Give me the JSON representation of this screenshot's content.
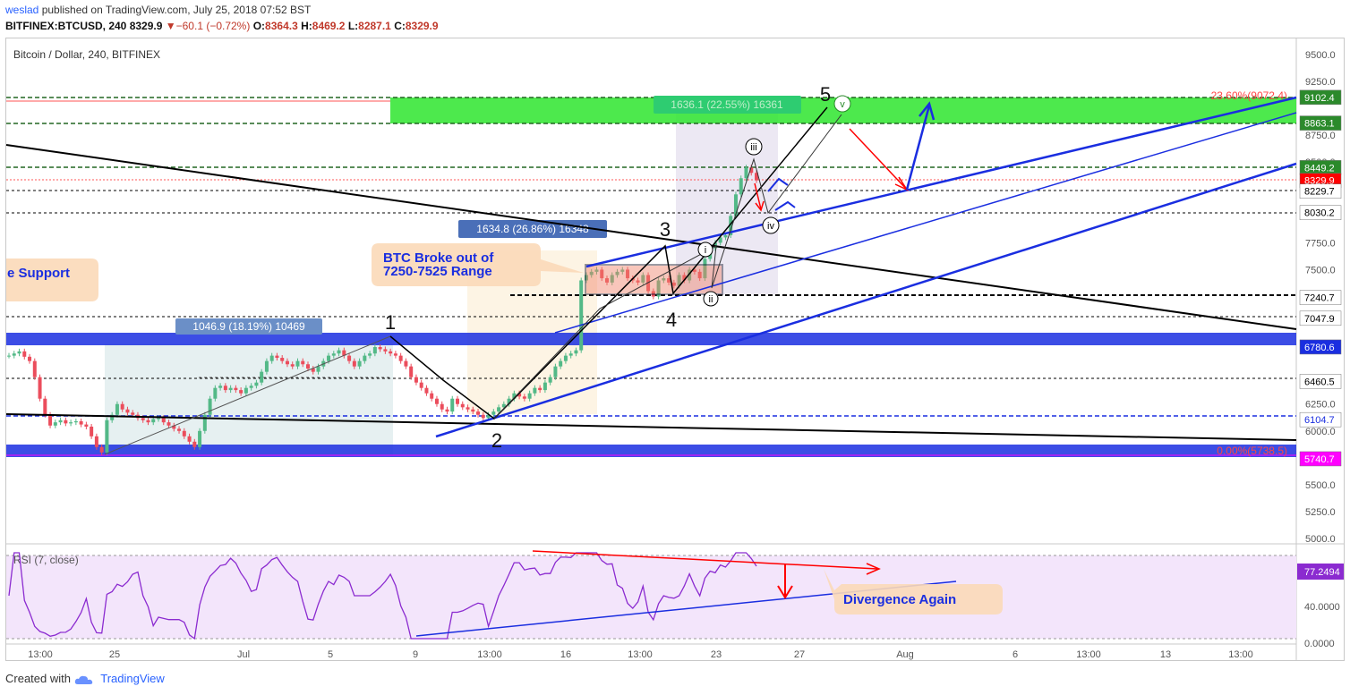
{
  "header": {
    "author": "weslad",
    "published_text": "published on TradingView.com, July 25, 2018 07:52 BST",
    "symbol": "BITFINEX:BTCUSD, 240",
    "last": "8329.9",
    "change": "▼−60.1 (−0.72%)",
    "o_label": "O:",
    "o_value": "8364.3",
    "h_label": "H:",
    "h_value": "8469.2",
    "l_label": "L:",
    "l_value": "8287.1",
    "c_label": "C:",
    "c_value": "8329.9"
  },
  "legend": {
    "title": "Bitcoin / Dollar, 240, BITFINEX"
  },
  "footer": {
    "created_with": "Created with",
    "brand": "TradingView"
  },
  "colors": {
    "up": "#53b987",
    "down": "#eb4d5c",
    "blue_line": "#1a2ee0",
    "green_zone": "#2ee52e",
    "rsi_bg": "#f3e5fb",
    "red_arrow": "#ff0000"
  },
  "chart_data": {
    "type": "candlestick",
    "y_axis": {
      "ticks": [
        "9500.0",
        "9250.0",
        "8750.0",
        "8500.0",
        "7750.0",
        "7500.0",
        "6250.0",
        "6000.0",
        "5500.0",
        "5250.0",
        "5000.0"
      ],
      "ylim": [
        4950,
        9650
      ]
    },
    "x_axis": {
      "ticks": [
        "13:00",
        "25",
        "Jul",
        "5",
        "9",
        "13:00",
        "16",
        "13:00",
        "23",
        "27",
        "Aug",
        "6",
        "13:00",
        "13",
        "13:00"
      ]
    },
    "price_tags": [
      {
        "label": "9102.4",
        "bg": "#2b8a2b",
        "fg": "#ffffff"
      },
      {
        "label": "8863.1",
        "bg": "#2b8a2b",
        "fg": "#ffffff"
      },
      {
        "label": "8449.2",
        "bg": "#2b8a2b",
        "fg": "#ffffff"
      },
      {
        "label": "8329.9",
        "bg": "#ff0000",
        "fg": "#ffffff"
      },
      {
        "label": "8229.7",
        "bg": "#ffffff",
        "fg": "#000000"
      },
      {
        "label": "8030.2",
        "bg": "#ffffff",
        "fg": "#000000"
      },
      {
        "label": "7240.7",
        "bg": "#ffffff",
        "fg": "#000000"
      },
      {
        "label": "7047.9",
        "bg": "#ffffff",
        "fg": "#000000"
      },
      {
        "label": "6780.6",
        "bg": "#1a2ee0",
        "fg": "#ffffff"
      },
      {
        "label": "6460.5",
        "bg": "#ffffff",
        "fg": "#000000"
      },
      {
        "label": "6104.7",
        "bg": "#ffffff",
        "fg": "#1a2ee0"
      },
      {
        "label": "5740.7",
        "bg": "#ff00ff",
        "fg": "#ffffff"
      }
    ],
    "fib_labels": {
      "top": "23.60%(9072.4)",
      "bottom": "0.00%(5738.5)"
    },
    "range_labels": [
      "1046.9 (18.19%) 10469",
      "1634.8 (26.86%) 16348",
      "1636.1 (22.55%) 16361"
    ],
    "wave_labels": [
      "1",
      "2",
      "3",
      "4",
      "5"
    ],
    "sub_wave_labels": [
      "i",
      "ii",
      "iii",
      "iv",
      "v"
    ],
    "notes": {
      "support": "e Support",
      "breakout_line1": "BTC Broke out of",
      "breakout_line2": "7250-7525 Range",
      "divergence": "Divergence Again"
    },
    "rsi": {
      "label": "RSI (7, close)",
      "value": "77.2494",
      "ticks": [
        "40.0000",
        "0.0000"
      ]
    },
    "close_series": [
      6700,
      6720,
      6740,
      6690,
      6650,
      6500,
      6300,
      6150,
      6050,
      6080,
      6100,
      6070,
      6080,
      6090,
      6060,
      6040,
      5950,
      5850,
      5800,
      6100,
      6150,
      6250,
      6200,
      6170,
      6150,
      6120,
      6100,
      6080,
      6110,
      6120,
      6080,
      6050,
      6020,
      6000,
      5950,
      5900,
      5850,
      6000,
      6150,
      6300,
      6400,
      6420,
      6380,
      6400,
      6380,
      6350,
      6400,
      6420,
      6450,
      6550,
      6650,
      6700,
      6680,
      6650,
      6620,
      6600,
      6650,
      6620,
      6580,
      6550,
      6600,
      6650,
      6700,
      6720,
      6750,
      6700,
      6650,
      6600,
      6650,
      6700,
      6720,
      6780,
      6760,
      6740,
      6720,
      6700,
      6650,
      6600,
      6500,
      6450,
      6400,
      6350,
      6300,
      6250,
      6200,
      6180,
      6300,
      6250,
      6220,
      6200,
      6180,
      6150,
      6120,
      6150,
      6180,
      6220,
      6250,
      6300,
      6350,
      6320,
      6300,
      6350,
      6400,
      6380,
      6450,
      6500,
      6600,
      6650,
      6700,
      6720,
      6750,
      7400,
      7450,
      7480,
      7500,
      7420,
      7380,
      7450,
      7480,
      7500,
      7420,
      7400,
      7380,
      7450,
      7300,
      7250,
      7400,
      7420,
      7380,
      7350,
      7450,
      7400,
      7500,
      7480,
      7420,
      7600,
      7700,
      7750,
      7800,
      7820,
      8000,
      8200,
      8350,
      8450,
      8400,
      8330
    ]
  }
}
